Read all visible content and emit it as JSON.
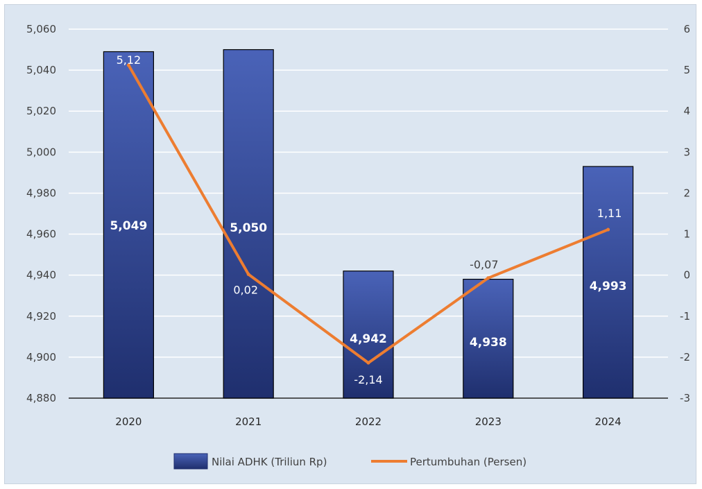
{
  "chart_data": {
    "type": "bar",
    "categories": [
      "2020",
      "2021",
      "2022",
      "2023",
      "2024"
    ],
    "series": [
      {
        "name": "Nilai ADHK (Triliun Rp)",
        "type": "bar",
        "axis": "left",
        "values": [
          5049,
          5050,
          4942,
          4938,
          4993
        ],
        "labels": [
          "5,049",
          "5,050",
          "4,942",
          "4,938",
          "4,993"
        ],
        "color": "#3b55ab"
      },
      {
        "name": "Pertumbuhan (Persen)",
        "type": "line",
        "axis": "right",
        "values": [
          5.12,
          0.02,
          -2.14,
          -0.07,
          1.11
        ],
        "labels": [
          "5,12",
          "0,02",
          "-2,14",
          "-0,07",
          "1,11"
        ],
        "color": "#ed7d31"
      }
    ],
    "y_left": {
      "min": 4880,
      "max": 5060,
      "step": 20,
      "tick_labels": [
        "4,880",
        "4,900",
        "4,920",
        "4,940",
        "4,960",
        "4,980",
        "5,000",
        "5,020",
        "5,040",
        "5,060"
      ]
    },
    "y_right": {
      "min": -3,
      "max": 6,
      "step": 1,
      "tick_labels": [
        "-3",
        "-2",
        "-1",
        "0",
        "1",
        "2",
        "3",
        "4",
        "5",
        "6"
      ]
    },
    "grid": true,
    "legend": "bottom"
  }
}
